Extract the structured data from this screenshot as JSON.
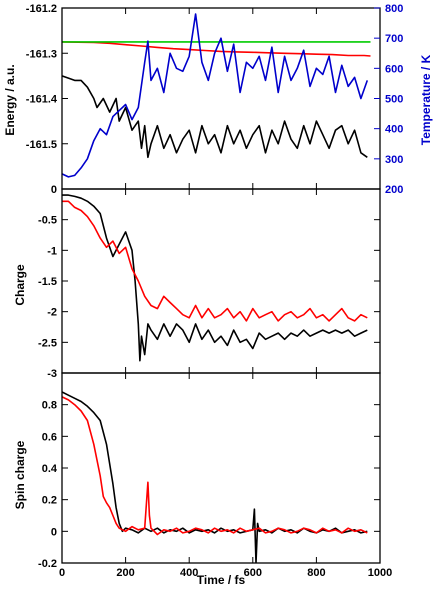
{
  "chart_data": [
    {
      "type": "line",
      "panel": "top",
      "xlabel": "",
      "ylabel": "Energy / a.u.",
      "ylabel_right": "Temperature / K",
      "xlim": [
        0,
        1000
      ],
      "ylim": [
        -161.6,
        -161.2
      ],
      "ylim_right": [
        200,
        800
      ],
      "x_ticks": [
        "0",
        "200",
        "400",
        "600",
        "800",
        "1000"
      ],
      "y_ticks": [
        "-161.5",
        "-161.4",
        "-161.3",
        "-161.2"
      ],
      "y_ticks_right": [
        "200",
        "300",
        "400",
        "500",
        "600",
        "700",
        "800"
      ],
      "colors": {
        "black": "#000000",
        "red": "#ff0000",
        "green": "#00cc00",
        "blue": "#0000cc"
      },
      "series": [
        {
          "color": "black",
          "axis": "left",
          "x": [
            0,
            20,
            40,
            60,
            80,
            100,
            110,
            130,
            150,
            170,
            180,
            200,
            220,
            240,
            250,
            260,
            270,
            280,
            300,
            320,
            340,
            360,
            380,
            400,
            420,
            440,
            460,
            480,
            500,
            520,
            540,
            560,
            580,
            600,
            620,
            640,
            660,
            680,
            700,
            720,
            740,
            760,
            780,
            800,
            820,
            840,
            860,
            880,
            900,
            920,
            940,
            960
          ],
          "y": [
            -161.35,
            -161.355,
            -161.36,
            -161.36,
            -161.375,
            -161.4,
            -161.42,
            -161.4,
            -161.43,
            -161.4,
            -161.45,
            -161.42,
            -161.47,
            -161.45,
            -161.51,
            -161.46,
            -161.53,
            -161.5,
            -161.46,
            -161.51,
            -161.48,
            -161.52,
            -161.49,
            -161.47,
            -161.52,
            -161.46,
            -161.5,
            -161.48,
            -161.52,
            -161.46,
            -161.5,
            -161.47,
            -161.51,
            -161.48,
            -161.46,
            -161.52,
            -161.47,
            -161.5,
            -161.45,
            -161.49,
            -161.51,
            -161.46,
            -161.5,
            -161.45,
            -161.48,
            -161.51,
            -161.47,
            -161.46,
            -161.5,
            -161.47,
            -161.52,
            -161.53
          ]
        },
        {
          "color": "red",
          "axis": "left",
          "x": [
            0,
            100,
            150,
            200,
            250,
            300,
            350,
            400,
            450,
            500,
            550,
            600,
            650,
            700,
            750,
            800,
            850,
            900,
            950,
            970
          ],
          "y": [
            -161.275,
            -161.276,
            -161.278,
            -161.281,
            -161.284,
            -161.287,
            -161.29,
            -161.292,
            -161.294,
            -161.296,
            -161.297,
            -161.298,
            -161.299,
            -161.3,
            -161.301,
            -161.302,
            -161.303,
            -161.305,
            -161.305,
            -161.306
          ]
        },
        {
          "color": "green",
          "axis": "left",
          "x": [
            0,
            970
          ],
          "y": [
            -161.275,
            -161.275
          ]
        },
        {
          "color": "blue",
          "axis": "right",
          "x": [
            0,
            20,
            40,
            60,
            80,
            100,
            120,
            140,
            160,
            180,
            200,
            220,
            240,
            260,
            270,
            280,
            300,
            320,
            340,
            360,
            380,
            400,
            420,
            440,
            460,
            480,
            500,
            520,
            540,
            560,
            580,
            600,
            620,
            640,
            660,
            680,
            700,
            720,
            740,
            760,
            780,
            800,
            820,
            840,
            860,
            880,
            900,
            920,
            940,
            960
          ],
          "y": [
            250,
            240,
            245,
            270,
            300,
            360,
            400,
            380,
            440,
            460,
            480,
            430,
            470,
            620,
            690,
            560,
            600,
            520,
            650,
            600,
            590,
            640,
            780,
            620,
            560,
            650,
            700,
            590,
            680,
            520,
            620,
            600,
            640,
            560,
            670,
            520,
            640,
            560,
            600,
            660,
            540,
            600,
            580,
            640,
            520,
            610,
            540,
            570,
            500,
            560
          ]
        }
      ]
    },
    {
      "type": "line",
      "panel": "middle",
      "xlabel": "",
      "ylabel": "Charge",
      "xlim": [
        0,
        1000
      ],
      "ylim": [
        -3,
        0
      ],
      "x_ticks": [
        "0",
        "200",
        "400",
        "600",
        "800",
        "1000"
      ],
      "y_ticks": [
        "-3",
        "-2.5",
        "-2",
        "-1.5",
        "-1",
        "-0.5",
        "0"
      ],
      "colors": {
        "black": "#000000",
        "red": "#ff0000"
      },
      "series": [
        {
          "color": "black",
          "x": [
            0,
            20,
            40,
            60,
            80,
            100,
            120,
            140,
            160,
            180,
            200,
            210,
            220,
            230,
            240,
            245,
            250,
            260,
            270,
            280,
            300,
            320,
            340,
            360,
            380,
            400,
            420,
            440,
            460,
            480,
            500,
            520,
            540,
            560,
            580,
            600,
            620,
            640,
            660,
            680,
            700,
            720,
            740,
            760,
            780,
            800,
            820,
            840,
            860,
            880,
            900,
            920,
            940,
            960
          ],
          "y": [
            -0.1,
            -0.1,
            -0.12,
            -0.15,
            -0.2,
            -0.28,
            -0.4,
            -0.8,
            -1.1,
            -0.9,
            -0.7,
            -0.85,
            -1.0,
            -1.5,
            -2.2,
            -2.8,
            -2.4,
            -2.7,
            -2.2,
            -2.3,
            -2.45,
            -2.2,
            -2.4,
            -2.2,
            -2.3,
            -2.5,
            -2.2,
            -2.45,
            -2.3,
            -2.5,
            -2.4,
            -2.55,
            -2.3,
            -2.5,
            -2.45,
            -2.6,
            -2.35,
            -2.45,
            -2.4,
            -2.35,
            -2.45,
            -2.35,
            -2.4,
            -2.3,
            -2.4,
            -2.35,
            -2.3,
            -2.35,
            -2.3,
            -2.35,
            -2.3,
            -2.4,
            -2.35,
            -2.3
          ]
        },
        {
          "color": "red",
          "x": [
            0,
            20,
            40,
            60,
            80,
            100,
            120,
            140,
            160,
            180,
            200,
            220,
            240,
            260,
            280,
            300,
            320,
            340,
            360,
            380,
            400,
            420,
            440,
            460,
            480,
            500,
            520,
            540,
            560,
            580,
            600,
            620,
            640,
            660,
            680,
            700,
            720,
            740,
            760,
            780,
            800,
            820,
            840,
            860,
            880,
            900,
            920,
            940,
            960
          ],
          "y": [
            -0.2,
            -0.2,
            -0.3,
            -0.35,
            -0.45,
            -0.6,
            -0.8,
            -0.95,
            -0.85,
            -1.05,
            -0.95,
            -1.3,
            -1.5,
            -1.75,
            -1.9,
            -1.95,
            -1.75,
            -1.85,
            -1.95,
            -2.05,
            -2.1,
            -1.9,
            -2.1,
            -1.95,
            -2.1,
            -2.05,
            -1.95,
            -2.1,
            -2.0,
            -2.15,
            -1.95,
            -2.1,
            -2.05,
            -2.0,
            -2.15,
            -2.05,
            -2.0,
            -2.1,
            -2.05,
            -1.95,
            -2.1,
            -2.05,
            -2.15,
            -2.05,
            -1.95,
            -2.1,
            -2.15,
            -2.05,
            -2.1
          ]
        }
      ]
    },
    {
      "type": "line",
      "panel": "bottom",
      "xlabel": "Time / fs",
      "ylabel": "Spin charge",
      "xlim": [
        0,
        1000
      ],
      "ylim": [
        -0.2,
        1.0
      ],
      "x_ticks": [
        "0",
        "200",
        "400",
        "600",
        "800",
        "1000"
      ],
      "y_ticks": [
        "-0.2",
        "0",
        "0.2",
        "0.4",
        "0.6",
        "0.8"
      ],
      "colors": {
        "black": "#000000",
        "red": "#ff0000"
      },
      "series": [
        {
          "color": "black",
          "x": [
            0,
            20,
            40,
            60,
            80,
            100,
            120,
            140,
            160,
            170,
            180,
            190,
            200,
            220,
            240,
            260,
            280,
            300,
            320,
            340,
            360,
            380,
            400,
            420,
            440,
            460,
            480,
            500,
            520,
            540,
            560,
            580,
            600,
            605,
            610,
            615,
            620,
            640,
            660,
            680,
            700,
            720,
            740,
            760,
            780,
            800,
            820,
            840,
            860,
            880,
            900,
            920,
            940,
            960
          ],
          "y": [
            0.88,
            0.86,
            0.84,
            0.82,
            0.79,
            0.75,
            0.7,
            0.55,
            0.3,
            0.15,
            0.05,
            0.0,
            0.02,
            0.01,
            -0.01,
            0.02,
            0.0,
            0.02,
            -0.01,
            0.01,
            0.0,
            0.02,
            -0.01,
            0.01,
            0.0,
            0.01,
            -0.01,
            0.02,
            0.0,
            0.01,
            -0.01,
            0.0,
            0.01,
            0.14,
            -0.2,
            0.05,
            0.0,
            0.01,
            -0.01,
            0.02,
            0.0,
            0.01,
            -0.01,
            0.02,
            0.0,
            -0.01,
            0.01,
            0.0,
            0.02,
            -0.01,
            0.0,
            0.01,
            -0.01,
            0.0
          ]
        },
        {
          "color": "red",
          "x": [
            0,
            20,
            40,
            60,
            80,
            100,
            120,
            130,
            140,
            150,
            160,
            170,
            180,
            200,
            220,
            240,
            260,
            270,
            275,
            280,
            290,
            300,
            320,
            340,
            360,
            380,
            400,
            420,
            440,
            460,
            480,
            500,
            520,
            540,
            560,
            580,
            600,
            620,
            640,
            660,
            680,
            700,
            720,
            740,
            760,
            780,
            800,
            820,
            840,
            860,
            880,
            900,
            920,
            940,
            960
          ],
          "y": [
            0.85,
            0.83,
            0.8,
            0.76,
            0.7,
            0.55,
            0.35,
            0.22,
            0.18,
            0.15,
            0.1,
            0.05,
            0.02,
            0.0,
            0.03,
            0.01,
            0.02,
            0.31,
            0.1,
            0.02,
            0.0,
            -0.02,
            0.01,
            0.0,
            0.02,
            -0.01,
            0.0,
            0.02,
            0.01,
            -0.01,
            0.02,
            0.0,
            0.01,
            -0.01,
            0.02,
            0.0,
            0.01,
            0.02,
            -0.01,
            0.0,
            0.02,
            0.01,
            -0.01,
            0.0,
            0.02,
            0.01,
            -0.01,
            0.02,
            0.0,
            0.01,
            -0.01,
            0.02,
            0.0,
            0.01,
            -0.01
          ]
        }
      ]
    }
  ]
}
